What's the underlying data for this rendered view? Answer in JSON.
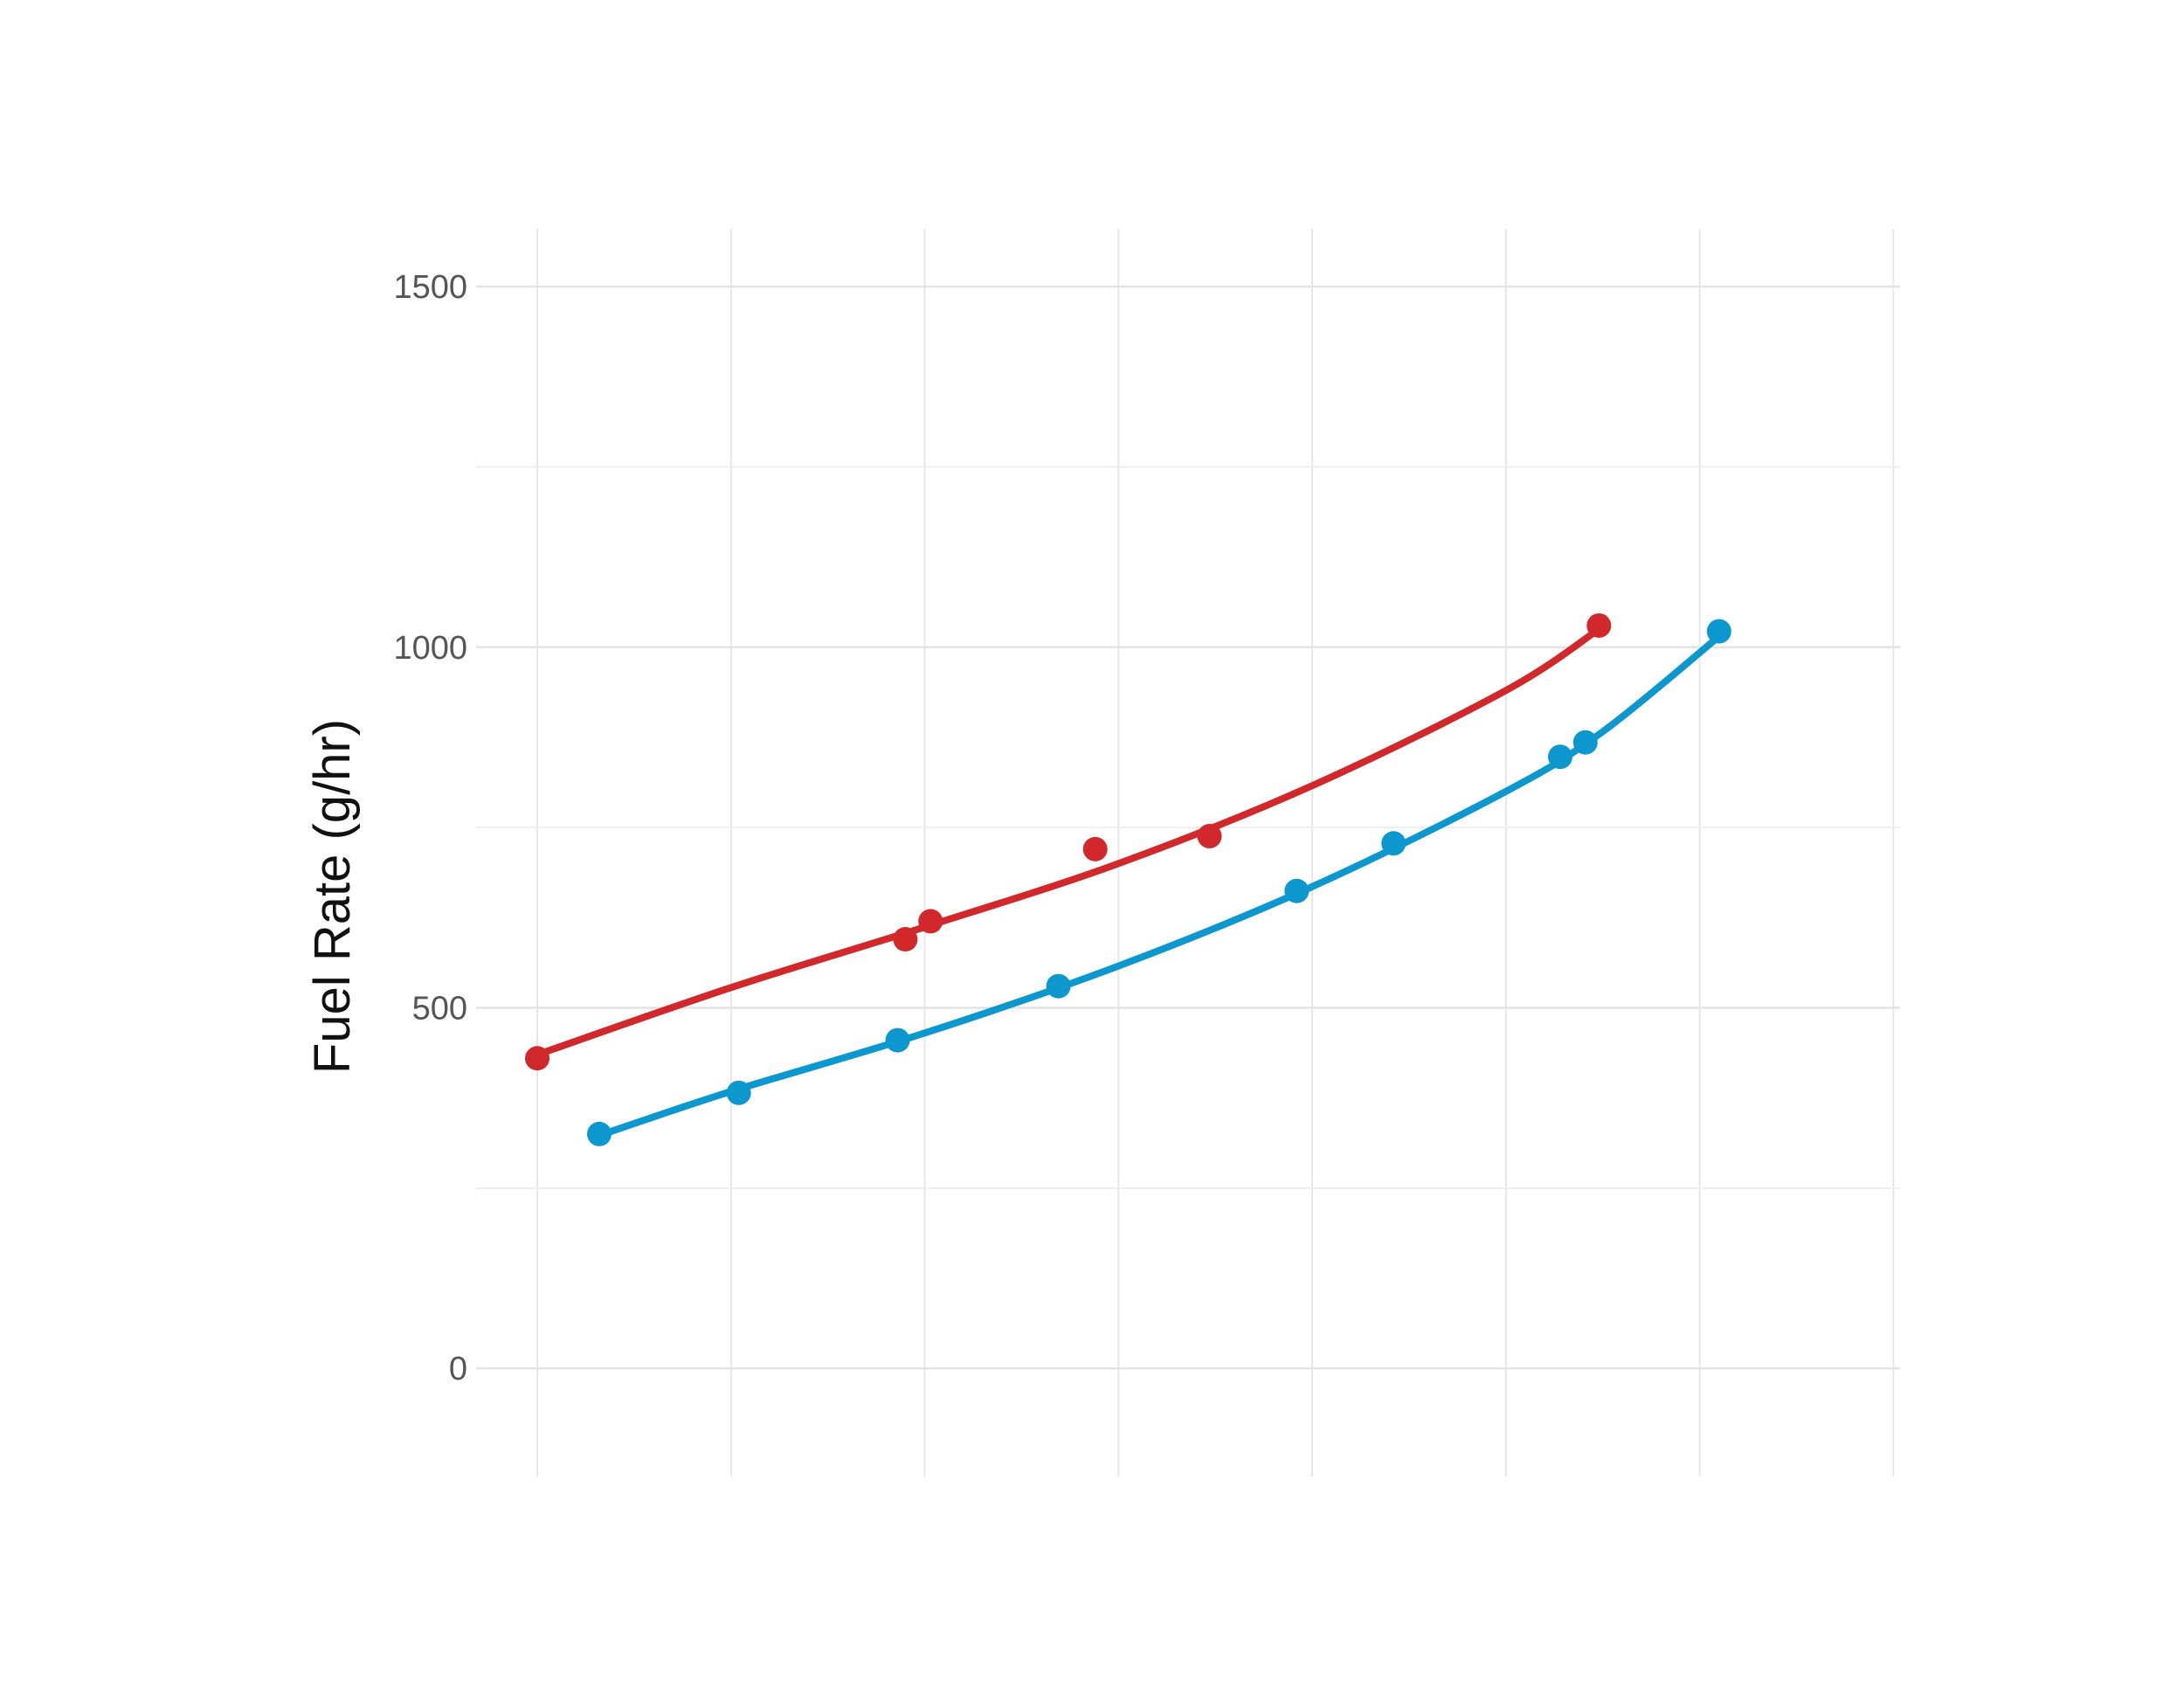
{
  "chart_data": {
    "type": "line",
    "title": "",
    "xlabel": "",
    "ylabel": "Fuel Rate (g/hr)",
    "xlim": [
      0,
      7.35
    ],
    "ylim": [
      -150,
      1580
    ],
    "x_gridlines": [
      0,
      1,
      2,
      3,
      4,
      5,
      6,
      7
    ],
    "y_ticks": [
      0,
      500,
      1000,
      1500
    ],
    "y_minor_gridlines": [
      250,
      750,
      1250
    ],
    "grid": true,
    "legend": "none",
    "series": [
      {
        "color": "#d0282b",
        "points": [
          {
            "x": 0.0,
            "y": 430
          },
          {
            "x": 1.9,
            "y": 595
          },
          {
            "x": 2.03,
            "y": 620
          },
          {
            "x": 2.88,
            "y": 720
          },
          {
            "x": 3.47,
            "y": 738
          },
          {
            "x": 5.48,
            "y": 1030
          }
        ],
        "curve": [
          {
            "x": 0.0,
            "y": 435
          },
          {
            "x": 1.0,
            "y": 528
          },
          {
            "x": 2.0,
            "y": 612
          },
          {
            "x": 3.0,
            "y": 700
          },
          {
            "x": 4.0,
            "y": 808
          },
          {
            "x": 5.0,
            "y": 940
          },
          {
            "x": 5.48,
            "y": 1025
          }
        ]
      },
      {
        "color": "#0c97cf",
        "points": [
          {
            "x": 0.32,
            "y": 325
          },
          {
            "x": 1.04,
            "y": 382
          },
          {
            "x": 1.86,
            "y": 455
          },
          {
            "x": 2.69,
            "y": 530
          },
          {
            "x": 3.92,
            "y": 662
          },
          {
            "x": 4.42,
            "y": 728
          },
          {
            "x": 5.28,
            "y": 848
          },
          {
            "x": 5.41,
            "y": 868
          },
          {
            "x": 6.1,
            "y": 1022
          }
        ],
        "curve": [
          {
            "x": 0.32,
            "y": 323
          },
          {
            "x": 1.0,
            "y": 384
          },
          {
            "x": 2.0,
            "y": 465
          },
          {
            "x": 3.0,
            "y": 558
          },
          {
            "x": 4.0,
            "y": 668
          },
          {
            "x": 5.0,
            "y": 800
          },
          {
            "x": 5.5,
            "y": 883
          },
          {
            "x": 6.1,
            "y": 1015
          }
        ]
      }
    ]
  }
}
